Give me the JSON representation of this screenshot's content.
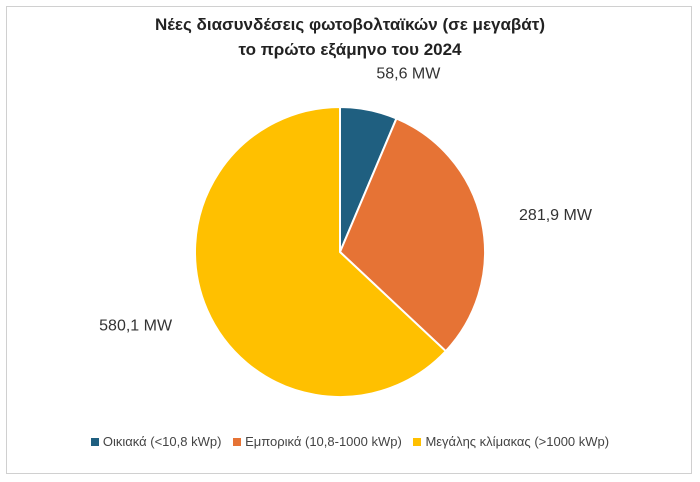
{
  "chart_data": {
    "type": "pie",
    "title_lines": [
      "Νέες διασυνδέσεις φωτοβολταϊκών (σε μεγαβάτ)",
      "το πρώτο εξάμηνο του 2024"
    ],
    "categories": [
      "Οικιακά (<10,8 kWp)",
      "Εμπορικά (10,8-1000 kWp)",
      "Μεγάλης κλίμακας (>1000 kWp)"
    ],
    "values": [
      58.6,
      281.9,
      580.1
    ],
    "data_labels": [
      "58,6 MW",
      "281,9 MW",
      "580,1 MW"
    ],
    "colors": [
      "#1f5f80",
      "#e67335",
      "#ffc000"
    ],
    "legend_position": "bottom"
  }
}
